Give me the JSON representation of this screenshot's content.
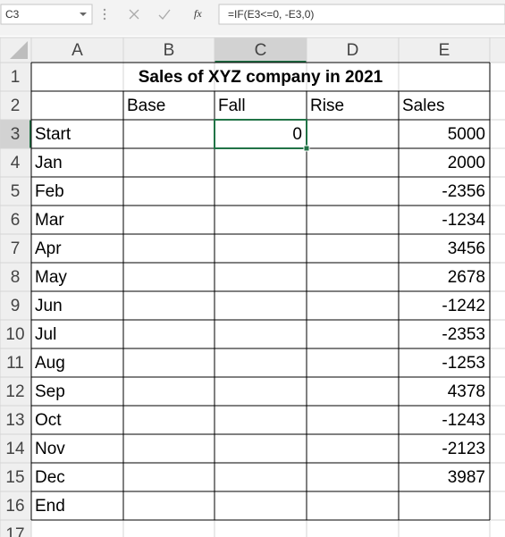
{
  "name_box": "C3",
  "fx_label": "fx",
  "formula": "=IF(E3<=0, -E3,0)",
  "columns": [
    "A",
    "B",
    "C",
    "D",
    "E"
  ],
  "row_numbers": [
    1,
    2,
    3,
    4,
    5,
    6,
    7,
    8,
    9,
    10,
    11,
    12,
    13,
    14,
    15,
    16,
    17
  ],
  "title": "Sales of XYZ company in 2021",
  "header": [
    "Base",
    "Fall",
    "Rise",
    "Sales"
  ],
  "rows": [
    {
      "label": "Start",
      "fall": 0,
      "sales": 5000
    },
    {
      "label": "Jan",
      "sales": 2000
    },
    {
      "label": "Feb",
      "sales": -2356
    },
    {
      "label": "Mar",
      "sales": -1234
    },
    {
      "label": "Apr",
      "sales": 3456
    },
    {
      "label": "May",
      "sales": 2678
    },
    {
      "label": "Jun",
      "sales": -1242
    },
    {
      "label": "Jul",
      "sales": -2353
    },
    {
      "label": "Aug",
      "sales": -1253
    },
    {
      "label": "Sep",
      "sales": 4378
    },
    {
      "label": "Oct",
      "sales": -1243
    },
    {
      "label": "Nov",
      "sales": -2123
    },
    {
      "label": "Dec",
      "sales": 3987
    },
    {
      "label": "End"
    }
  ]
}
